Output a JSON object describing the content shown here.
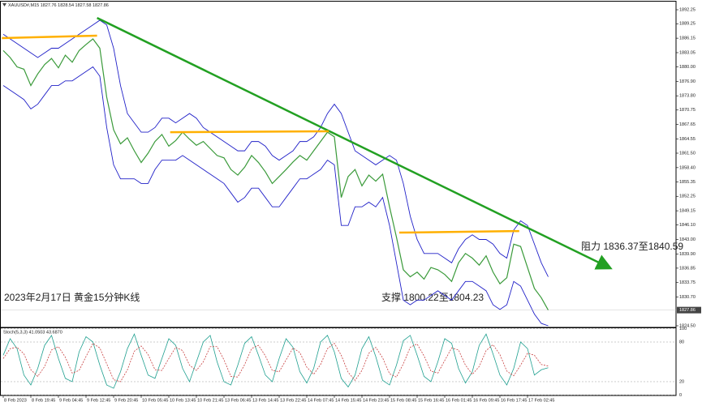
{
  "chart_data": {
    "type": "line",
    "header": "XAUUSD#,M15  1827.76 1828.54 1827.58 1827.86",
    "categories": [
      "8 Feb 2023",
      null,
      null,
      null,
      "8 Feb 19:45",
      null,
      null,
      null,
      "9 Feb 04:45",
      null,
      null,
      null,
      "9 Feb 12:45",
      null,
      null,
      null,
      "9 Feb 20:45",
      null,
      null,
      null,
      "10 Feb 05:45",
      null,
      null,
      null,
      "10 Feb 13:45",
      null,
      null,
      null,
      "10 Feb 21:45",
      null,
      null,
      null,
      "13 Feb 06:45",
      null,
      null,
      null,
      "13 Feb 14:45",
      null,
      null,
      null,
      "13 Feb 22:45",
      null,
      null,
      null,
      "14 Feb 07:45",
      null,
      null,
      null,
      "14 Feb 15:45",
      null,
      null,
      null,
      "14 Feb 23:45",
      null,
      null,
      null,
      "15 Feb 08:45",
      null,
      null,
      null,
      "15 Feb 16:45",
      null,
      null,
      null,
      "16 Feb 01:45",
      null,
      null,
      null,
      "16 Feb 09:45",
      null,
      null,
      null,
      "16 Feb 17:45",
      null,
      null,
      null,
      "17 Feb 02:45",
      null,
      null,
      null
    ],
    "series": [
      {
        "name": "Close",
        "color": "#3a9a3a",
        "values": [
          1883.5,
          1882.0,
          1880.0,
          1879.5,
          1876.0,
          1878.5,
          1880.5,
          1881.8,
          1879.8,
          1882.5,
          1881.0,
          1883.5,
          1884.8,
          1886.0,
          1884.0,
          1873.5,
          1866.5,
          1863.5,
          1864.8,
          1862.0,
          1859.5,
          1861.5,
          1864.0,
          1865.5,
          1863.0,
          1864.2,
          1866.0,
          1864.5,
          1863.2,
          1864.0,
          1862.5,
          1861.0,
          1860.5,
          1858.0,
          1856.8,
          1858.5,
          1861.0,
          1859.5,
          1857.5,
          1855.0,
          1856.5,
          1858.0,
          1859.6,
          1861.0,
          1860.0,
          1862.0,
          1864.0,
          1866.0,
          1865.0,
          1852.0,
          1856.5,
          1858.0,
          1854.5,
          1856.8,
          1855.5,
          1857.0,
          1850.0,
          1843.5,
          1836.5,
          1835.0,
          1836.0,
          1834.5,
          1837.0,
          1836.5,
          1835.5,
          1834.0,
          1838.0,
          1840.0,
          1839.0,
          1837.5,
          1839.5,
          1836.0,
          1833.5,
          1834.8,
          1842.0,
          1841.5,
          1837.0,
          1832.5,
          1830.5,
          1827.86
        ]
      },
      {
        "name": "Upper",
        "color": "#2020c8",
        "values": [
          1887,
          1886,
          1885,
          1884,
          1883,
          1882,
          1883,
          1884,
          1884,
          1885,
          1886,
          1887,
          1888,
          1889,
          1890,
          1889,
          1884,
          1876,
          1870,
          1868,
          1866,
          1866,
          1867,
          1869,
          1869,
          1868,
          1869,
          1870,
          1869,
          1867,
          1866,
          1865,
          1864,
          1863,
          1862,
          1862,
          1864,
          1864,
          1863,
          1861,
          1860,
          1861,
          1862,
          1864,
          1864,
          1865,
          1867,
          1870,
          1872,
          1870,
          1866,
          1862,
          1861,
          1860,
          1859,
          1860,
          1861,
          1860,
          1855,
          1848,
          1843,
          1840,
          1840,
          1840,
          1839,
          1838,
          1841,
          1843,
          1844,
          1843,
          1843,
          1842,
          1840,
          1839,
          1845,
          1847,
          1846,
          1842,
          1838,
          1835
        ]
      },
      {
        "name": "Lower",
        "color": "#2020c8",
        "values": [
          1876,
          1875,
          1874,
          1873,
          1871,
          1872,
          1874,
          1876,
          1876,
          1877,
          1877,
          1878,
          1879,
          1880,
          1878,
          1867,
          1859,
          1856,
          1856,
          1856,
          1855,
          1855,
          1858,
          1860,
          1860,
          1860,
          1861,
          1860,
          1859,
          1858,
          1857,
          1856,
          1855,
          1853,
          1851,
          1852,
          1854,
          1854,
          1852,
          1850,
          1850,
          1852,
          1854,
          1856,
          1856,
          1857,
          1858,
          1860,
          1859,
          1846,
          1846,
          1850,
          1850,
          1851,
          1850,
          1852,
          1846,
          1838,
          1830,
          1829,
          1830,
          1830,
          1831,
          1832,
          1831,
          1830,
          1832,
          1834,
          1834,
          1833,
          1832,
          1829,
          1828,
          1829,
          1834,
          1833,
          1830,
          1827,
          1825,
          1824.5
        ]
      }
    ],
    "ylim": [
      1824.15,
      1893.99
    ],
    "yticks": [
      1892.25,
      1889.25,
      1886.15,
      1883.05,
      {
        "value": 1880,
        "label": "1880.00"
      },
      {
        "value": 1876.9,
        "label": "1876.90"
      },
      {
        "value": 1873.8,
        "label": "1873.80"
      },
      1870.75,
      1867.65,
      1864.55,
      {
        "value": 1861.5,
        "label": "1861.50"
      },
      {
        "value": 1858.4,
        "label": "1858.40"
      },
      1855.35,
      1852.25,
      1849.15,
      {
        "value": 1846.1,
        "label": "1846.10"
      },
      {
        "value": 1843,
        "label": "1843.00"
      },
      {
        "value": 1839.9,
        "label": "1839.90"
      },
      1836.85,
      1833.75,
      {
        "value": 1830.7,
        "label": "1830.70"
      },
      {
        "value": 1824.5,
        "label": "1824.50"
      }
    ],
    "last_price": 1827.86,
    "lines": [
      {
        "color": "#22a022",
        "x": [
          13.6,
          87.8
        ],
        "y": [
          1890.5,
          1837.0
        ],
        "arrow": true
      },
      {
        "color": "#ffb000",
        "x": [
          -0.2,
          13.6
        ],
        "y": [
          1886.17,
          1886.7
        ]
      },
      {
        "color": "#ffb000",
        "x": [
          24.2,
          47.2
        ],
        "y": [
          1866.0,
          1866.2
        ]
      },
      {
        "color": "#ffb000",
        "x": [
          57.4,
          74.8
        ],
        "y": [
          1844.47,
          1844.8
        ]
      }
    ],
    "annotations": [
      "阻力 1836.37至1840.59",
      "支撑 1800.22至1804.23",
      "2023年2月17日 黄金15分钟K线"
    ],
    "indicator": {
      "title": "Stoch(5,3,3) 41.0503 43.6870",
      "ylim": [
        0,
        100
      ],
      "yticks": [
        100,
        80,
        20,
        0
      ],
      "series": [
        {
          "name": "Main",
          "color": "#20a090",
          "values": [
            60,
            85,
            70,
            30,
            15,
            40,
            75,
            90,
            55,
            25,
            20,
            65,
            88,
            80,
            45,
            15,
            10,
            35,
            70,
            92,
            60,
            30,
            25,
            55,
            85,
            75,
            40,
            20,
            50,
            80,
            90,
            50,
            20,
            15,
            45,
            78,
            88,
            60,
            30,
            20,
            55,
            85,
            72,
            35,
            18,
            40,
            80,
            90,
            65,
            25,
            12,
            30,
            70,
            88,
            58,
            22,
            15,
            45,
            82,
            90,
            60,
            28,
            20,
            50,
            85,
            78,
            40,
            18,
            35,
            75,
            92,
            62,
            30,
            15,
            40,
            80,
            70,
            30,
            38,
            41.0503
          ]
        },
        {
          "name": "Signal",
          "color": "#c84040",
          "values": [
            55,
            70,
            72,
            62,
            38,
            28,
            43,
            68,
            73,
            57,
            33,
            37,
            58,
            78,
            71,
            47,
            23,
            20,
            38,
            66,
            74,
            61,
            38,
            37,
            55,
            72,
            67,
            45,
            37,
            50,
            73,
            73,
            53,
            28,
            27,
            46,
            70,
            75,
            59,
            37,
            35,
            53,
            71,
            64,
            42,
            31,
            46,
            70,
            78,
            60,
            34,
            22,
            37,
            63,
            72,
            56,
            32,
            27,
            47,
            72,
            77,
            59,
            36,
            33,
            52,
            71,
            68,
            45,
            31,
            43,
            67,
            76,
            61,
            36,
            29,
            45,
            63,
            60,
            46,
            43.687
          ]
        }
      ]
    }
  }
}
